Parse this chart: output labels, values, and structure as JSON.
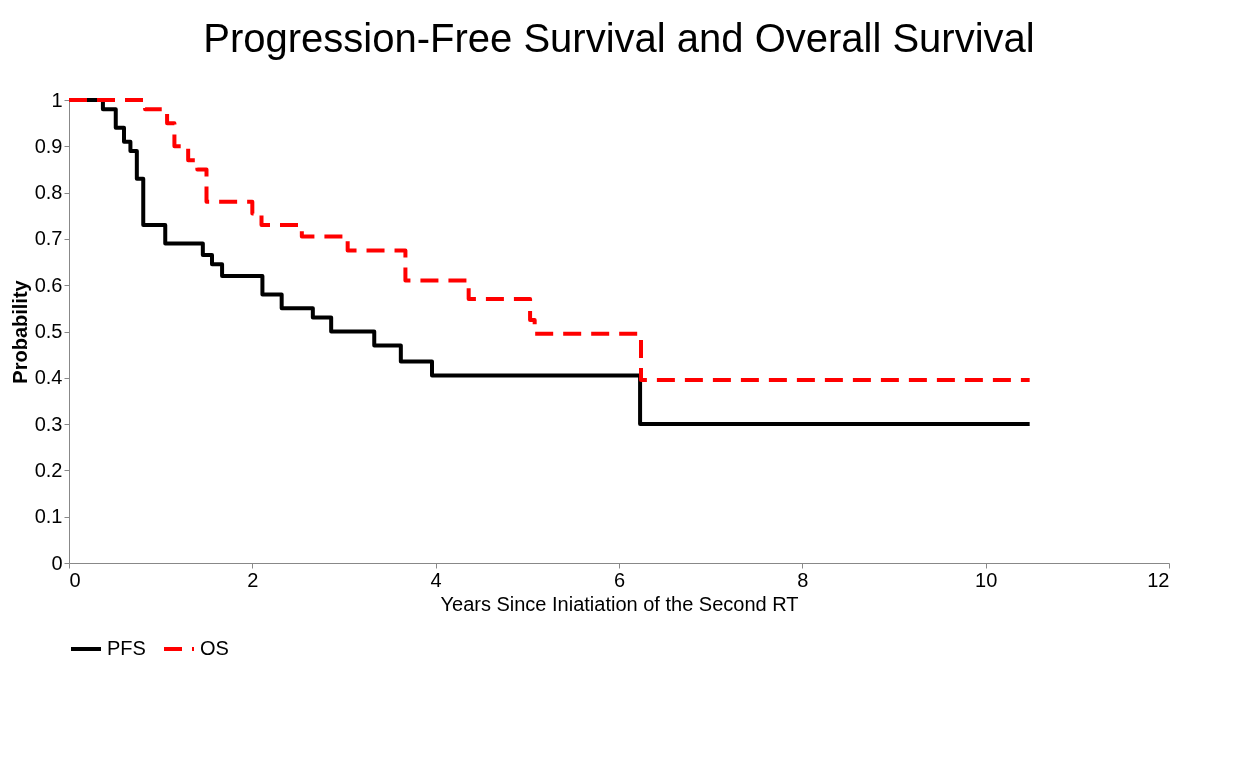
{
  "chart_data": {
    "type": "step",
    "title": "Progression-Free Survival and Overall Survival",
    "xlabel": "Years Since Iniatiation of the Second RT",
    "ylabel": "Probability",
    "xlim": [
      0,
      12
    ],
    "xticks": [
      0,
      2,
      4,
      6,
      8,
      10,
      12
    ],
    "ylim": [
      0,
      1
    ],
    "yticks": [
      0,
      0.1,
      0.2,
      0.3,
      0.4,
      0.5,
      0.6,
      0.7,
      0.8,
      0.9,
      1
    ],
    "grid": false,
    "legend": "bottom",
    "marker": "none",
    "series": [
      {
        "name": "PFS",
        "color": "#000000",
        "line_style": "solid",
        "x": [
          0,
          0.37,
          0.51,
          0.6,
          0.67,
          0.74,
          0.81,
          1.05,
          1.46,
          1.56,
          1.67,
          2.11,
          2.32,
          2.66,
          2.86,
          3.33,
          3.62,
          3.96,
          6.23,
          10.48
        ],
        "values": [
          1,
          0.98,
          0.94,
          0.91,
          0.89,
          0.83,
          0.73,
          0.69,
          0.665,
          0.645,
          0.62,
          0.58,
          0.55,
          0.53,
          0.5,
          0.47,
          0.435,
          0.405,
          0.3,
          0.3
        ]
      },
      {
        "name": "OS",
        "color": "#ff0000",
        "line_style": "dashed",
        "x": [
          0,
          0.83,
          1.07,
          1.15,
          1.3,
          1.4,
          1.5,
          2.0,
          2.1,
          2.54,
          3.04,
          3.67,
          4.36,
          5.03,
          5.08,
          6.24,
          10.48
        ],
        "values": [
          1,
          0.98,
          0.95,
          0.9,
          0.87,
          0.85,
          0.78,
          0.755,
          0.73,
          0.705,
          0.675,
          0.61,
          0.57,
          0.525,
          0.495,
          0.395,
          0.395
        ]
      }
    ]
  }
}
